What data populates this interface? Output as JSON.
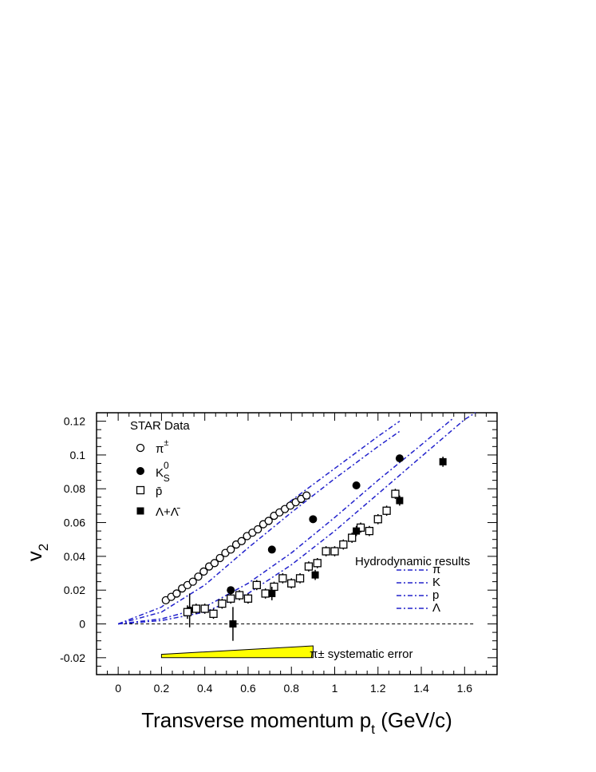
{
  "chart_data": {
    "type": "scatter",
    "xlabel": "Transverse momentum p",
    "xlabel_sub": "t",
    "xlabel_unit": "(GeV/c)",
    "ylabel": "v",
    "ylabel_sub": "2",
    "xlim": [
      -0.1,
      1.75
    ],
    "ylim": [
      -0.03,
      0.125
    ],
    "x_ticks": [
      {
        "v": 0,
        "label": "0"
      },
      {
        "v": 0.2,
        "label": "0.2"
      },
      {
        "v": 0.4,
        "label": "0.4"
      },
      {
        "v": 0.6,
        "label": "0.6"
      },
      {
        "v": 0.8,
        "label": "0.8"
      },
      {
        "v": 1.0,
        "label": "1"
      },
      {
        "v": 1.2,
        "label": "1.2"
      },
      {
        "v": 1.4,
        "label": "1.4"
      },
      {
        "v": 1.6,
        "label": "1.6"
      }
    ],
    "y_ticks": [
      {
        "v": -0.02,
        "label": "-0.02"
      },
      {
        "v": 0,
        "label": "0"
      },
      {
        "v": 0.02,
        "label": "0.02"
      },
      {
        "v": 0.04,
        "label": "0.04"
      },
      {
        "v": 0.06,
        "label": "0.06"
      },
      {
        "v": 0.08,
        "label": "0.08"
      },
      {
        "v": 0.1,
        "label": "0.1"
      },
      {
        "v": 0.12,
        "label": "0.12"
      }
    ],
    "legend_data_title": "STAR Data",
    "legend_hydro_title": "Hydrodynamic results",
    "series": [
      {
        "name": "π±",
        "marker": "open-circle",
        "points": [
          [
            0.22,
            0.014
          ],
          [
            0.245,
            0.016
          ],
          [
            0.27,
            0.018
          ],
          [
            0.295,
            0.021
          ],
          [
            0.32,
            0.023
          ],
          [
            0.345,
            0.025
          ],
          [
            0.37,
            0.028
          ],
          [
            0.395,
            0.031
          ],
          [
            0.42,
            0.034
          ],
          [
            0.445,
            0.036
          ],
          [
            0.47,
            0.039
          ],
          [
            0.495,
            0.042
          ],
          [
            0.52,
            0.044
          ],
          [
            0.545,
            0.047
          ],
          [
            0.57,
            0.049
          ],
          [
            0.595,
            0.052
          ],
          [
            0.62,
            0.054
          ],
          [
            0.645,
            0.056
          ],
          [
            0.67,
            0.059
          ],
          [
            0.695,
            0.061
          ],
          [
            0.72,
            0.064
          ],
          [
            0.745,
            0.066
          ],
          [
            0.77,
            0.068
          ],
          [
            0.795,
            0.07
          ],
          [
            0.82,
            0.072
          ],
          [
            0.845,
            0.074
          ],
          [
            0.87,
            0.076
          ]
        ]
      },
      {
        "name": "K0S",
        "marker": "filled-circle",
        "points": [
          [
            0.33,
            0.008,
            0.01
          ],
          [
            0.52,
            0.02,
            0.002
          ],
          [
            0.71,
            0.044,
            0.002
          ],
          [
            0.9,
            0.062,
            0.002
          ],
          [
            1.1,
            0.082,
            0.002
          ],
          [
            1.3,
            0.098,
            0.002
          ]
        ]
      },
      {
        "name": "p̄",
        "marker": "open-square",
        "points": [
          [
            0.32,
            0.007,
            0.004
          ],
          [
            0.36,
            0.009,
            0.003
          ],
          [
            0.4,
            0.009,
            0.003
          ],
          [
            0.44,
            0.006,
            0.003
          ],
          [
            0.48,
            0.012,
            0.003
          ],
          [
            0.52,
            0.015,
            0.003
          ],
          [
            0.56,
            0.017,
            0.003
          ],
          [
            0.6,
            0.015,
            0.003
          ],
          [
            0.64,
            0.023,
            0.003
          ],
          [
            0.68,
            0.018,
            0.003
          ],
          [
            0.72,
            0.022,
            0.003
          ],
          [
            0.76,
            0.027,
            0.003
          ],
          [
            0.8,
            0.024,
            0.003
          ],
          [
            0.84,
            0.027,
            0.003
          ],
          [
            0.88,
            0.034,
            0.003
          ],
          [
            0.92,
            0.036,
            0.003
          ],
          [
            0.96,
            0.043,
            0.003
          ],
          [
            1.0,
            0.043,
            0.003
          ],
          [
            1.04,
            0.047,
            0.003
          ],
          [
            1.08,
            0.051,
            0.003
          ],
          [
            1.12,
            0.057,
            0.003
          ],
          [
            1.16,
            0.055,
            0.003
          ],
          [
            1.2,
            0.062,
            0.003
          ],
          [
            1.24,
            0.067,
            0.003
          ],
          [
            1.28,
            0.077,
            0.003
          ]
        ]
      },
      {
        "name": "Λ+Λ̄",
        "marker": "filled-square",
        "points": [
          [
            0.53,
            0.0,
            0.01
          ],
          [
            0.71,
            0.018,
            0.004
          ],
          [
            0.91,
            0.029,
            0.003
          ],
          [
            1.1,
            0.055,
            0.003
          ],
          [
            1.3,
            0.073,
            0.003
          ],
          [
            1.5,
            0.096,
            0.003
          ]
        ]
      }
    ],
    "hydro_curves": [
      {
        "name": "π",
        "points": [
          [
            0,
            0
          ],
          [
            0.2,
            0.01
          ],
          [
            0.4,
            0.031
          ],
          [
            0.6,
            0.053
          ],
          [
            0.8,
            0.073
          ],
          [
            1.0,
            0.092
          ],
          [
            1.2,
            0.111
          ],
          [
            1.3,
            0.12
          ]
        ]
      },
      {
        "name": "K",
        "points": [
          [
            0,
            0
          ],
          [
            0.2,
            0.007
          ],
          [
            0.4,
            0.023
          ],
          [
            0.6,
            0.045
          ],
          [
            0.8,
            0.066
          ],
          [
            1.0,
            0.086
          ],
          [
            1.2,
            0.105
          ],
          [
            1.3,
            0.114
          ]
        ]
      },
      {
        "name": "p",
        "points": [
          [
            0,
            0
          ],
          [
            0.2,
            0.003
          ],
          [
            0.4,
            0.01
          ],
          [
            0.6,
            0.024
          ],
          [
            0.8,
            0.042
          ],
          [
            1.0,
            0.063
          ],
          [
            1.2,
            0.085
          ],
          [
            1.4,
            0.106
          ],
          [
            1.55,
            0.122
          ]
        ]
      },
      {
        "name": "Λ",
        "points": [
          [
            0,
            0
          ],
          [
            0.2,
            0.002
          ],
          [
            0.4,
            0.007
          ],
          [
            0.6,
            0.018
          ],
          [
            0.8,
            0.035
          ],
          [
            1.0,
            0.055
          ],
          [
            1.2,
            0.077
          ],
          [
            1.4,
            0.099
          ],
          [
            1.6,
            0.121
          ],
          [
            1.65,
            0.125
          ]
        ]
      }
    ],
    "zero_line": true,
    "systematic_error_label": "π± systematic error",
    "systematic_error_band": {
      "x_start": 0.2,
      "x_end": 0.9,
      "y_bottom": -0.02,
      "y_top_start": -0.018,
      "y_top_end": -0.013
    },
    "colors": {
      "hydro": "#2222cc",
      "band_fill": "#ffff00",
      "axis": "#000000"
    }
  }
}
